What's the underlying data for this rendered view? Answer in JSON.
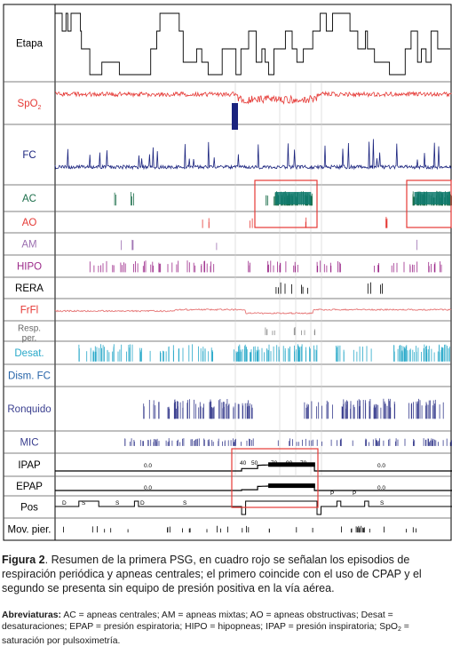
{
  "channels": [
    {
      "label": "Etapa",
      "color": "#000000"
    },
    {
      "label": "SpO2",
      "color": "#e53935"
    },
    {
      "label": "FC",
      "color": "#1a237e"
    },
    {
      "label": "AC",
      "color": "#1b6e4a"
    },
    {
      "label": "AO",
      "color": "#e53935"
    },
    {
      "label": "AM",
      "color": "#9c6fb0"
    },
    {
      "label": "HIPO",
      "color": "#9c2a8a"
    },
    {
      "label": "RERA",
      "color": "#000000"
    },
    {
      "label": "FrFl",
      "color": "#e53935"
    },
    {
      "label": "Resp. per.",
      "color": "#666666"
    },
    {
      "label": "Desat.",
      "color": "#29a9c9"
    },
    {
      "label": "Dism. FC",
      "color": "#2563a8"
    },
    {
      "label": "Ronquido",
      "color": "#3a3f8f"
    },
    {
      "label": "MIC",
      "color": "#3a3f8f"
    },
    {
      "label": "IPAP",
      "color": "#000000"
    },
    {
      "label": "EPAP",
      "color": "#000000"
    },
    {
      "label": "Pos",
      "color": "#000000"
    },
    {
      "label": "Mov. pier.",
      "color": "#000000"
    }
  ],
  "ipap_values": [
    "0.0",
    "40",
    "50",
    "70",
    "90",
    "70",
    "0.0"
  ],
  "epap_values": [
    "0.0",
    "0.0"
  ],
  "pos_letters": [
    "D",
    "S",
    "S",
    "D",
    "S",
    "P",
    "P",
    "S"
  ],
  "caption": {
    "label": "Figura 2",
    "text": ". Resumen de la primera PSG, en cuadro rojo se señalan los episodios de respiración periódica y apneas centrales; el primero coincide con el uso de CPAP y el segundo se presenta sin equipo de presión positiva en la vía aérea."
  },
  "abbreviations": {
    "label": "Abreviaturas:",
    "text": " AC = apneas centrales; AM = apneas mixtas; AO = apneas obstructivas; Desat = desaturaciones; EPAP = presión espiratoria; HIPO = hipopneas; IPAP = presión inspiratoria; SpO",
    "sub": "2",
    "tail": " = saturación por pulsoximetría."
  },
  "colors": {
    "highlight_box": "#e53935",
    "grid": "#cfcfcf"
  }
}
